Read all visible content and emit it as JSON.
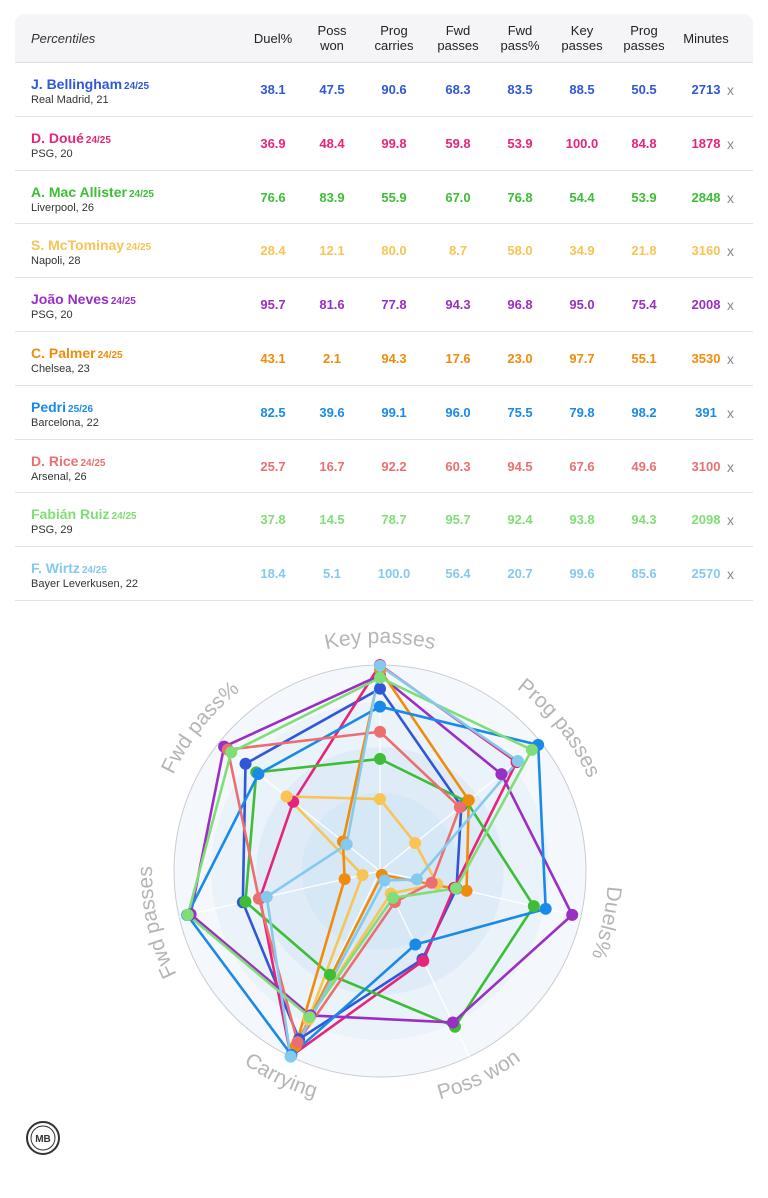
{
  "table": {
    "header_first": "Percentiles",
    "columns": [
      {
        "l1": "Duel%",
        "l2": ""
      },
      {
        "l1": "Poss",
        "l2": "won"
      },
      {
        "l1": "Prog",
        "l2": "carries"
      },
      {
        "l1": "Fwd",
        "l2": "passes"
      },
      {
        "l1": "Fwd",
        "l2": "pass%"
      },
      {
        "l1": "Key",
        "l2": "passes"
      },
      {
        "l1": "Prog",
        "l2": "passes"
      },
      {
        "l1": "Minutes",
        "l2": ""
      }
    ],
    "remove_label": "x",
    "players": [
      {
        "name": "J. Bellingham",
        "season": "24/25",
        "meta": "Real Madrid, 21",
        "color": "#2f57d8",
        "values": [
          "38.1",
          "47.5",
          "90.6",
          "68.3",
          "83.5",
          "88.5",
          "50.5",
          "2713"
        ]
      },
      {
        "name": "D. Doué",
        "season": "24/25",
        "meta": "PSG, 20",
        "color": "#e6247a",
        "values": [
          "36.9",
          "48.4",
          "99.8",
          "59.8",
          "53.9",
          "100.0",
          "84.8",
          "1878"
        ]
      },
      {
        "name": "A. Mac Allister",
        "season": "24/25",
        "meta": "Liverpool, 26",
        "color": "#3dbe35",
        "values": [
          "76.6",
          "83.9",
          "55.9",
          "67.0",
          "76.8",
          "54.4",
          "53.9",
          "2848"
        ]
      },
      {
        "name": "S. McTominay",
        "season": "24/25",
        "meta": "Napoli, 28",
        "color": "#f8c453",
        "values": [
          "28.4",
          "12.1",
          "80.0",
          "8.7",
          "58.0",
          "34.9",
          "21.8",
          "3160"
        ]
      },
      {
        "name": "João Neves",
        "season": "24/25",
        "meta": "PSG, 20",
        "color": "#9a2fc4",
        "values": [
          "95.7",
          "81.6",
          "77.8",
          "94.3",
          "96.8",
          "95.0",
          "75.4",
          "2008"
        ]
      },
      {
        "name": "C. Palmer",
        "season": "24/25",
        "meta": "Chelsea, 23",
        "color": "#f08c0b",
        "values": [
          "43.1",
          "2.1",
          "94.3",
          "17.6",
          "23.0",
          "97.7",
          "55.1",
          "3530"
        ]
      },
      {
        "name": "Pedri",
        "season": "25/26",
        "meta": "Barcelona, 22",
        "color": "#1a8ae8",
        "values": [
          "82.5",
          "39.6",
          "99.1",
          "96.0",
          "75.5",
          "79.8",
          "98.2",
          "391"
        ]
      },
      {
        "name": "D. Rice",
        "season": "24/25",
        "meta": "Arsenal, 26",
        "color": "#ec6f70",
        "values": [
          "25.7",
          "16.7",
          "92.2",
          "60.3",
          "94.5",
          "67.6",
          "49.6",
          "3100"
        ]
      },
      {
        "name": "Fabián Ruiz",
        "season": "24/25",
        "meta": "PSG, 29",
        "color": "#80de76",
        "values": [
          "37.8",
          "14.5",
          "78.7",
          "95.7",
          "92.4",
          "93.8",
          "94.3",
          "2098"
        ]
      },
      {
        "name": "F. Wirtz",
        "season": "24/25",
        "meta": "Bayer Leverkusen, 22",
        "color": "#84c9ee",
        "values": [
          "18.4",
          "5.1",
          "100.0",
          "56.4",
          "20.7",
          "99.6",
          "85.6",
          "2570"
        ]
      }
    ]
  },
  "chart_data": {
    "type": "radar",
    "axes": [
      "Key passes",
      "Prog passes",
      "Duels%",
      "Poss won",
      "Carrying",
      "Fwd passes",
      "Fwd pass%"
    ],
    "range": [
      0,
      100
    ],
    "series": [
      {
        "name": "J. Bellingham",
        "color": "#2f57d8",
        "values": [
          88.5,
          50.5,
          38.1,
          47.5,
          90.6,
          68.3,
          83.5
        ]
      },
      {
        "name": "D. Doué",
        "color": "#e6247a",
        "values": [
          100.0,
          84.8,
          36.9,
          48.4,
          99.8,
          59.8,
          53.9
        ]
      },
      {
        "name": "A. Mac Allister",
        "color": "#3dbe35",
        "values": [
          54.4,
          53.9,
          76.6,
          83.9,
          55.9,
          67.0,
          76.8
        ]
      },
      {
        "name": "S. McTominay",
        "color": "#f8c453",
        "values": [
          34.9,
          21.8,
          28.4,
          12.1,
          80.0,
          8.7,
          58.0
        ]
      },
      {
        "name": "João Neves",
        "color": "#9a2fc4",
        "values": [
          95.0,
          75.4,
          95.7,
          81.6,
          77.8,
          94.3,
          96.8
        ]
      },
      {
        "name": "C. Palmer",
        "color": "#f08c0b",
        "values": [
          97.7,
          55.1,
          43.1,
          2.1,
          94.3,
          17.6,
          23.0
        ]
      },
      {
        "name": "Pedri",
        "color": "#1a8ae8",
        "values": [
          79.8,
          98.2,
          82.5,
          39.6,
          99.1,
          96.0,
          75.5
        ]
      },
      {
        "name": "D. Rice",
        "color": "#ec6f70",
        "values": [
          67.6,
          49.6,
          25.7,
          16.7,
          92.2,
          60.3,
          94.5
        ]
      },
      {
        "name": "Fabián Ruiz",
        "color": "#80de76",
        "values": [
          93.8,
          94.3,
          37.8,
          14.5,
          78.7,
          95.7,
          92.4
        ]
      },
      {
        "name": "F. Wirtz",
        "color": "#84c9ee",
        "values": [
          99.6,
          85.6,
          18.4,
          5.1,
          100.0,
          56.4,
          20.7
        ]
      }
    ]
  },
  "logo": {
    "text": "MB"
  }
}
